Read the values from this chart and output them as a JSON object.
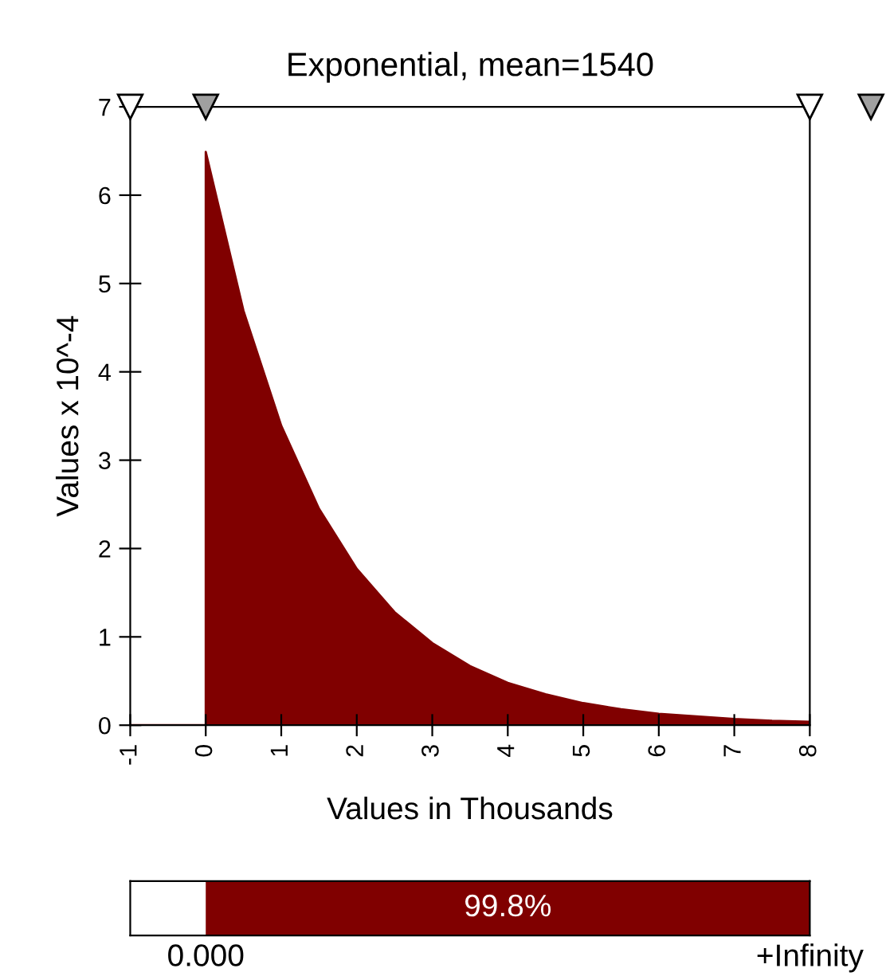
{
  "chart_data": [
    {
      "type": "area",
      "title": "Exponential, mean=1540",
      "xlabel": "Values in Thousands",
      "ylabel": "Values x 10^-4",
      "series": [
        {
          "color": "#800000",
          "x": [
            -1,
            0,
            0,
            0.5,
            1,
            1.5,
            2,
            2.5,
            3,
            3.5,
            4,
            4.5,
            5,
            5.5,
            6,
            6.5,
            7,
            7.5,
            8
          ],
          "values": [
            0,
            0,
            6.49,
            4.69,
            3.39,
            2.45,
            1.77,
            1.28,
            0.93,
            0.67,
            0.48,
            0.35,
            0.25,
            0.18,
            0.13,
            0.1,
            0.07,
            0.05,
            0.04
          ]
        }
      ],
      "xlim": [
        -1,
        8
      ],
      "xticks": [
        -1,
        0,
        1,
        2,
        3,
        4,
        5,
        6,
        7,
        8
      ],
      "ylim": [
        0,
        7
      ],
      "yticks": [
        0,
        1,
        2,
        3,
        4,
        5,
        6,
        7
      ],
      "grid": false,
      "legend": false
    },
    {
      "type": "other",
      "color": "#800000",
      "annotations": [
        "99.8%",
        "0.000",
        "+Infinity"
      ]
    }
  ]
}
